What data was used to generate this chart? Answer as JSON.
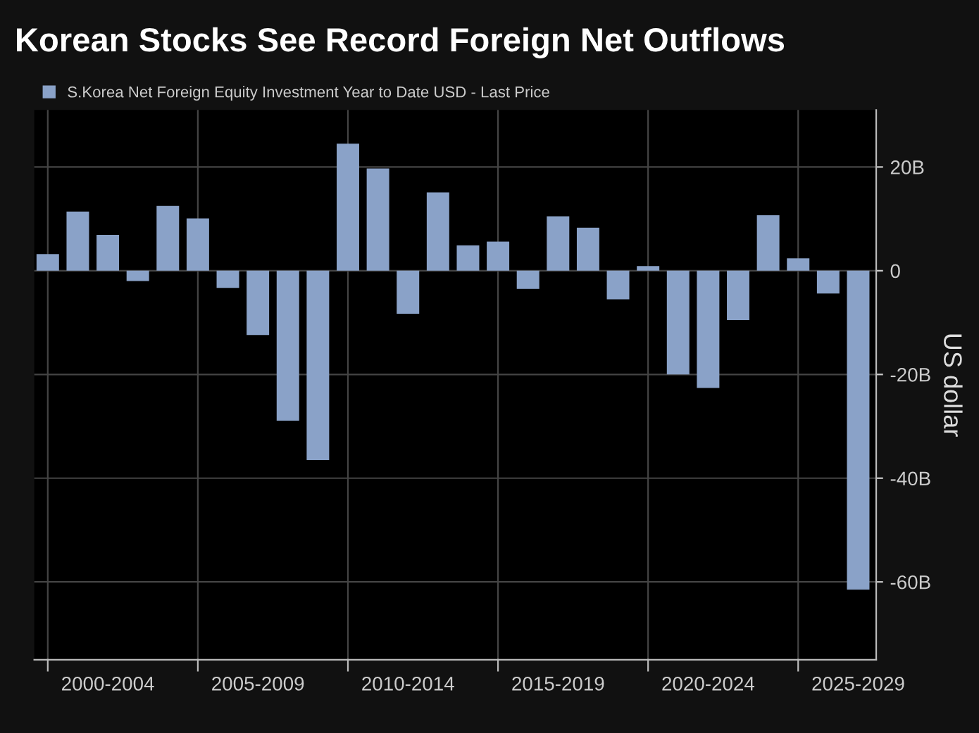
{
  "chart_data": {
    "type": "bar",
    "title": "Korean Stocks See Record Foreign Net Outflows",
    "categories": [
      null,
      null,
      null,
      null,
      null,
      null,
      null,
      null,
      null,
      null,
      null,
      null,
      null,
      null,
      null,
      null,
      null,
      null,
      null,
      null,
      null,
      null,
      null,
      null,
      null,
      null,
      null,
      null
    ],
    "series": [
      {
        "name": "S.Korea Net Foreign Equity Investment Year to Date USD - Last Price",
        "color": "#8aa2c8",
        "values": [
          3.2,
          11.4,
          6.9,
          -2.0,
          12.5,
          10.1,
          -3.3,
          -12.4,
          -28.9,
          -36.5,
          24.5,
          19.7,
          -8.3,
          15.1,
          4.9,
          5.6,
          -3.5,
          10.5,
          8.3,
          -5.5,
          0.9,
          -20.0,
          -22.6,
          -9.5,
          10.7,
          2.4,
          -4.4,
          -61.5
        ]
      }
    ],
    "ylabel": "US dollar",
    "annotations": [
      "2000-2004",
      "2005-2009",
      "2010-2014",
      "2015-2019",
      "2020-2024",
      "2025-2029"
    ],
    "ylim": [
      -75,
      31
    ],
    "yticks": [
      {
        "value": 20,
        "label": "20B"
      },
      0,
      {
        "value": -20,
        "label": "-20B"
      },
      {
        "value": -40,
        "label": "-40B"
      },
      {
        "value": -60,
        "label": "-60B"
      }
    ],
    "grid": true,
    "legend": "top left"
  }
}
